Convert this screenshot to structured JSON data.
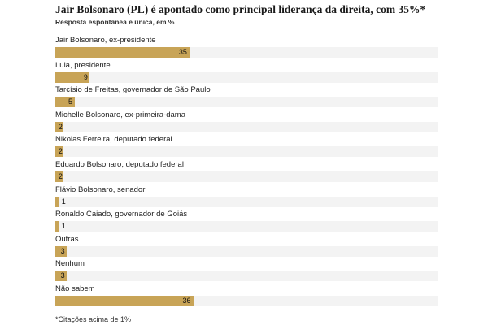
{
  "chart_data": {
    "type": "bar",
    "orientation": "horizontal",
    "title": "Jair Bolsonaro (PL) é apontado como principal liderança da direita, com 35%*",
    "subtitle": "Resposta espontânea e única, em %",
    "categories": [
      "Jair Bolsonaro, ex-presidente",
      "Lula, presidente",
      "Tarcísio de Freitas, governador de São Paulo",
      "Michelle Bolsonaro, ex-primeira-dama",
      "Nikolas Ferreira, deputado federal",
      "Eduardo Bolsonaro, deputado federal",
      "Flávio Bolsonaro, senador",
      "Ronaldo Caiado, governador de Goiás",
      "Outras",
      "Nenhum",
      "Não sabem"
    ],
    "values": [
      35,
      9,
      5,
      2,
      2,
      2,
      1,
      1,
      3,
      3,
      36
    ],
    "xlim": [
      0,
      100
    ],
    "bar_color": "#c8a457",
    "track_color": "#f3f3f3",
    "footnote": "*Citações acima de 1%"
  }
}
